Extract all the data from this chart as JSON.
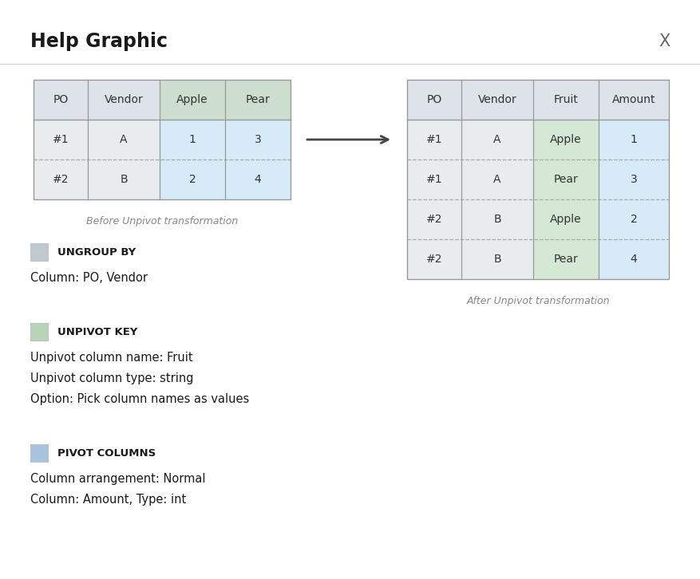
{
  "title": "Help Graphic",
  "close_x": "X",
  "background_color": "#ffffff",
  "title_fontsize": 17,
  "title_fontweight": "bold",
  "before_table": {
    "headers": [
      "PO",
      "Vendor",
      "Apple",
      "Pear"
    ],
    "rows": [
      [
        "#1",
        "A",
        "1",
        "3"
      ],
      [
        "#2",
        "B",
        "2",
        "4"
      ]
    ],
    "header_colors": [
      "#dde3e8",
      "#dde3e8",
      "#cddece",
      "#cddece"
    ],
    "data_colors_per_col": [
      "#e8ecef",
      "#e8ecef",
      "#d6eaf8",
      "#d6eaf8"
    ],
    "caption": "Before Unpivot transformation"
  },
  "after_table": {
    "headers": [
      "PO",
      "Vendor",
      "Fruit",
      "Amount"
    ],
    "rows": [
      [
        "#1",
        "A",
        "Apple",
        "1"
      ],
      [
        "#1",
        "A",
        "Pear",
        "3"
      ],
      [
        "#2",
        "B",
        "Apple",
        "2"
      ],
      [
        "#2",
        "B",
        "Pear",
        "4"
      ]
    ],
    "header_colors": [
      "#dde3e8",
      "#dde3e8",
      "#dde3e8",
      "#dde3e8"
    ],
    "data_colors_per_col": [
      "#e8ecef",
      "#e8ecef",
      "#d5e8d5",
      "#d6eaf8"
    ],
    "caption": "After Unpivot transformation"
  },
  "cell_bg_gray": "#e8ecef",
  "cell_bg_green": "#d5e8d5",
  "cell_bg_blue": "#d6eaf8",
  "legend_items": [
    {
      "color": "#c0c8d0",
      "label": "UNGROUP BY",
      "lines": [
        "Column: PO, Vendor"
      ]
    },
    {
      "color": "#b8d4b8",
      "label": "UNPIVOT KEY",
      "lines": [
        "Unpivot column name: Fruit",
        "Unpivot column type: string",
        "Option: Pick column names as values"
      ]
    },
    {
      "color": "#a8c4dc",
      "label": "PIVOT COLUMNS",
      "lines": [
        "Column arrangement: Normal",
        "Column: Amount, Type: int"
      ]
    }
  ]
}
